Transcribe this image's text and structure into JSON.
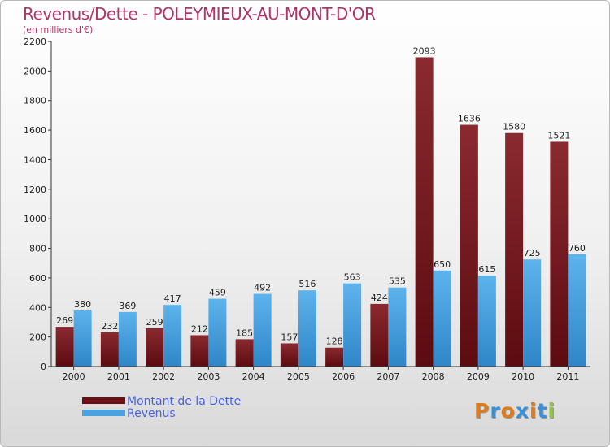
{
  "title": "Revenus/Dette - POLEYMIEUX-AU-MONT-D'OR",
  "subtitle": "(en milliers d'€)",
  "colors": {
    "title": "#b0336b",
    "debt_bar": "#7a1e24",
    "revenue_bar": "#4aa3e0",
    "legend_text": "#4a63e0"
  },
  "legend": [
    {
      "label": "Montant de la Dette",
      "color": "#6b0f14"
    },
    {
      "label": "Revenus",
      "color": "#4aa3e0"
    }
  ],
  "logo": {
    "text": "Proxiti",
    "colors": [
      "#e07b1a",
      "#3b8fd6",
      "#e07b1a",
      "#3b8fd6",
      "#e07b1a",
      "#3b8fd6",
      "#8cc63f"
    ]
  },
  "chart_data": {
    "type": "bar",
    "categories": [
      "2000",
      "2001",
      "2002",
      "2003",
      "2004",
      "2005",
      "2006",
      "2007",
      "2008",
      "2009",
      "2010",
      "2011"
    ],
    "series": [
      {
        "name": "Montant de la Dette",
        "values": [
          269,
          232,
          259,
          212,
          185,
          157,
          128,
          424,
          2093,
          1636,
          1580,
          1521
        ]
      },
      {
        "name": "Revenus",
        "values": [
          380,
          369,
          417,
          459,
          492,
          516,
          563,
          535,
          650,
          615,
          725,
          760
        ]
      }
    ],
    "ylim": [
      0,
      2200
    ],
    "yticks": [
      0,
      200,
      400,
      600,
      800,
      1000,
      1200,
      1400,
      1600,
      1800,
      2000,
      2200
    ],
    "grid": false,
    "legend_position": "bottom-left"
  }
}
